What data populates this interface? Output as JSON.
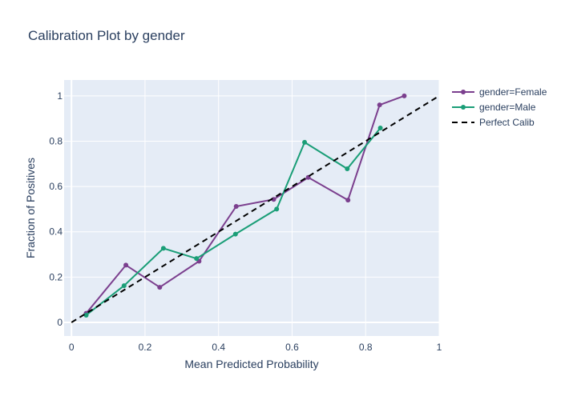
{
  "chart_data": {
    "type": "line",
    "title": "Calibration Plot by gender",
    "xlabel": "Mean Predicted Probability",
    "ylabel": "Fraction of Positives",
    "xlim": [
      -0.02,
      1.0
    ],
    "ylim": [
      -0.06,
      1.07
    ],
    "x_ticks": [
      0,
      0.2,
      0.4,
      0.6,
      0.8,
      1
    ],
    "y_ticks": [
      0,
      0.2,
      0.4,
      0.6,
      0.8,
      1
    ],
    "x_tick_labels": [
      "0",
      "0.2",
      "0.4",
      "0.6",
      "0.8",
      "1"
    ],
    "y_tick_labels": [
      "0",
      "0.2",
      "0.4",
      "0.6",
      "0.8",
      "1"
    ],
    "grid": true,
    "legend_position": "top-right",
    "plot_background": "#e5ecf6",
    "series": [
      {
        "name": "gender=Female",
        "color": "#7b3f8e",
        "style": "lines+markers",
        "x": [
          0.04,
          0.148,
          0.24,
          0.347,
          0.448,
          0.55,
          0.644,
          0.752,
          0.838,
          0.905
        ],
        "y": [
          0.04,
          0.253,
          0.155,
          0.27,
          0.512,
          0.543,
          0.64,
          0.54,
          0.96,
          1.0
        ]
      },
      {
        "name": "gender=Male",
        "color": "#1a9e77",
        "style": "lines+markers",
        "x": [
          0.04,
          0.143,
          0.25,
          0.34,
          0.446,
          0.558,
          0.634,
          0.75,
          0.84
        ],
        "y": [
          0.032,
          0.162,
          0.327,
          0.282,
          0.39,
          0.5,
          0.795,
          0.678,
          0.858
        ]
      },
      {
        "name": "Perfect Calib",
        "color": "#000000",
        "style": "dash",
        "x": [
          0,
          1
        ],
        "y": [
          0,
          1
        ]
      }
    ]
  }
}
